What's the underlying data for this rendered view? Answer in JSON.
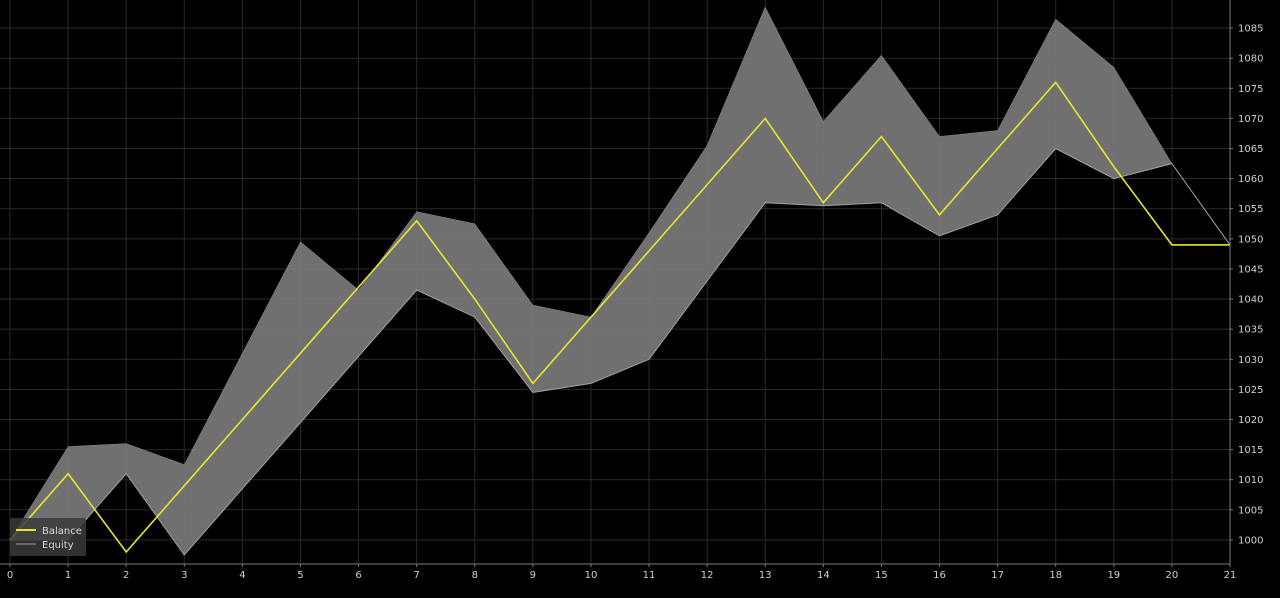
{
  "chart_data": {
    "type": "line",
    "title": "",
    "xlabel": "",
    "ylabel": "",
    "x": [
      0,
      1,
      2,
      3,
      4,
      5,
      6,
      7,
      8,
      9,
      10,
      11,
      12,
      13,
      14,
      15,
      16,
      17,
      18,
      19,
      20,
      21
    ],
    "xlim": [
      0,
      21
    ],
    "ylim": [
      996,
      1089
    ],
    "x_ticks": [
      0,
      1,
      2,
      3,
      4,
      5,
      6,
      7,
      8,
      9,
      10,
      11,
      12,
      13,
      14,
      15,
      16,
      17,
      18,
      19,
      20,
      21
    ],
    "y_ticks": [
      1000,
      1005,
      1010,
      1015,
      1020,
      1025,
      1030,
      1035,
      1040,
      1045,
      1050,
      1055,
      1060,
      1065,
      1070,
      1075,
      1080,
      1085
    ],
    "grid": true,
    "legend_position": "bottom-left",
    "series": [
      {
        "name": "Balance",
        "color": "#e6e62e",
        "values": [
          1000,
          1011,
          998,
          1009,
          1020,
          1031,
          1042,
          1053,
          1040,
          1026,
          1037,
          1048,
          1059,
          1070,
          1056,
          1067,
          1054,
          1065,
          1076,
          1062,
          1049,
          1049
        ]
      },
      {
        "name": "Equity",
        "color": "#a0a0a0",
        "values": [
          1000,
          1000,
          1011,
          997.5,
          1008.5,
          1019.5,
          1030.5,
          1041.5,
          1037,
          1024.5,
          1026,
          1030,
          1043,
          1056,
          1055.5,
          1056,
          1050.5,
          1054,
          1065,
          1060,
          1062.5,
          1049
        ]
      }
    ],
    "equity_band": {
      "color": "#7a7a7a",
      "upper": [
        1000,
        1015.5,
        1016,
        1012.5,
        1031,
        1049.5,
        1041.5,
        1054.5,
        1052.5,
        1039,
        1037,
        1051,
        1065.5,
        1088.5,
        1069.5,
        1080.5,
        1067,
        1068,
        1086.5,
        1078.5,
        1062.5,
        1049
      ],
      "lower": [
        1000,
        1000,
        1011,
        997.5,
        1008.5,
        1019.5,
        1030.5,
        1041.5,
        1037,
        1024.5,
        1026,
        1030,
        1043,
        1056,
        1055.5,
        1056,
        1050.5,
        1054,
        1065,
        1060,
        1062.5,
        1049
      ]
    }
  },
  "colors": {
    "background": "#000000",
    "grid": "#2a2a2a",
    "axis": "#7a7a7a",
    "tick_label": "#d0d0d0",
    "legend_bg": "#3a3a3a"
  }
}
